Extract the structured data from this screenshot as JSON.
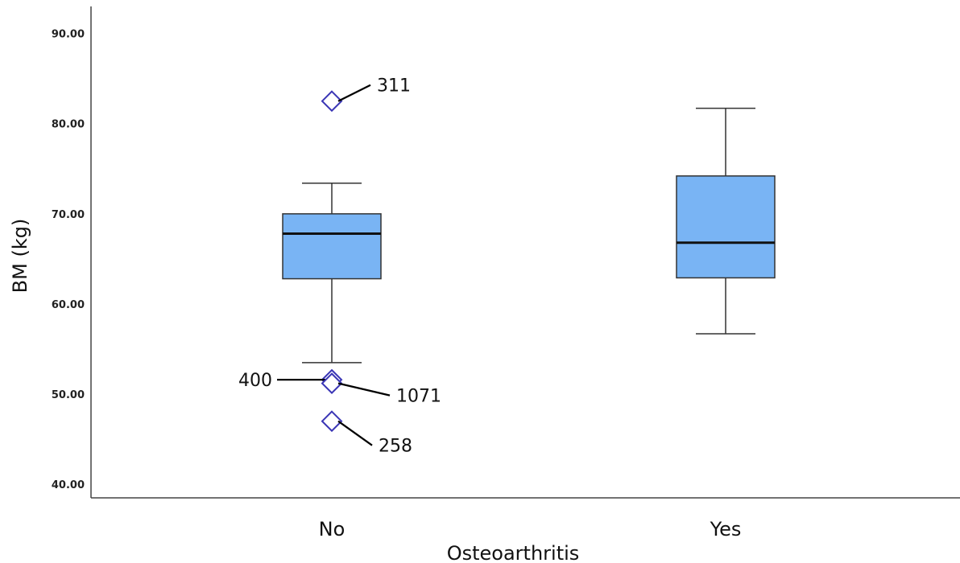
{
  "chart_data": {
    "type": "boxplot",
    "xlabel": "Osteoarthritis",
    "ylabel": "BM (kg)",
    "ylim": [
      38.5,
      93.0
    ],
    "yticks": [
      40,
      50,
      60,
      70,
      80,
      90
    ],
    "ytick_labels": [
      "40.00",
      "50.00",
      "60.00",
      "70.00",
      "80.00",
      "90.00"
    ],
    "grid": false,
    "legend": "none",
    "colors": {
      "box_fill": "#79b4f4",
      "box_stroke": "#333333",
      "outlier": "#3a35b5"
    },
    "categories": [
      "No",
      "Yes"
    ],
    "boxes": [
      {
        "category": "No",
        "whisker_low": 53.5,
        "q1": 62.8,
        "median": 67.8,
        "q3": 70.0,
        "whisker_high": 73.4,
        "outliers": [
          {
            "id": "311",
            "value": 82.5
          },
          {
            "id": "400",
            "value": 51.6
          },
          {
            "id": "1071",
            "value": 51.2
          },
          {
            "id": "258",
            "value": 47.0
          }
        ]
      },
      {
        "category": "Yes",
        "whisker_low": 56.7,
        "q1": 62.9,
        "median": 66.8,
        "q3": 74.2,
        "whisker_high": 81.7,
        "outliers": []
      }
    ]
  }
}
